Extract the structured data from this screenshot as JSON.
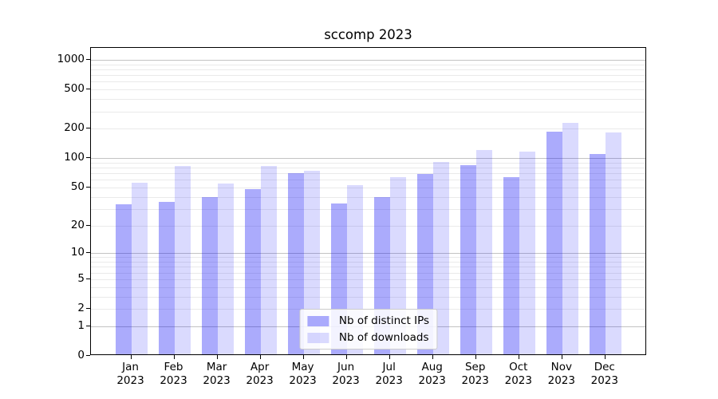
{
  "title": "sccomp 2023",
  "chart_data": {
    "type": "bar",
    "title": "sccomp 2023",
    "categories": [
      "Jan 2023",
      "Feb 2023",
      "Mar 2023",
      "Apr 2023",
      "May 2023",
      "Jun 2023",
      "Jul 2023",
      "Aug 2023",
      "Sep 2023",
      "Oct 2023",
      "Nov 2023",
      "Dec 2023"
    ],
    "xtick_month_labels": [
      "Jan",
      "Feb",
      "Mar",
      "Apr",
      "May",
      "Jun",
      "Jul",
      "Aug",
      "Sep",
      "Oct",
      "Nov",
      "Dec"
    ],
    "xtick_year_label": "2023",
    "series": [
      {
        "name": "Nb of distinct IPs",
        "color": "rgba(10,10,245,0.34)",
        "values": [
          32,
          34,
          38,
          46,
          68,
          33,
          38,
          66,
          81,
          62,
          180,
          107
        ]
      },
      {
        "name": "Nb of downloads",
        "color": "rgba(10,10,245,0.15)",
        "values": [
          54,
          80,
          53,
          80,
          72,
          51,
          62,
          88,
          116,
          113,
          220,
          175
        ]
      }
    ],
    "xlabel": "",
    "ylabel": "",
    "yscale": "log10(value+1)",
    "yticks": [
      1000,
      500,
      200,
      100,
      50,
      20,
      10,
      5,
      2,
      1,
      0
    ],
    "major_gridlines_at": [
      1,
      10,
      100,
      1000
    ],
    "ylim": [
      0,
      1310
    ],
    "grid": true,
    "legend_position": "lower center"
  },
  "colors": {
    "background": "#ffffff",
    "axis": "#000000",
    "major_grid": "#c3c3c3",
    "minor_grid": "#eaeaea",
    "legend_border": "#cccccc"
  }
}
